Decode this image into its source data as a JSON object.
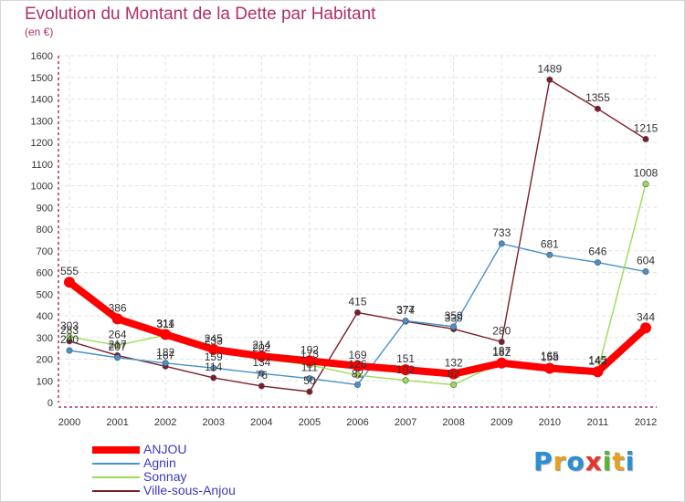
{
  "title": "Evolution du Montant de la Dette par Habitant",
  "subtitle": "(en €)",
  "logo": {
    "letters": [
      "P",
      "r",
      "o",
      "x",
      "i",
      "t",
      "i"
    ],
    "colors": [
      "#2a8fd6",
      "#e8a020",
      "#2a8fd6",
      "#e8342a",
      "#5ab531",
      "#e8a020",
      "#2a8fd6"
    ]
  },
  "chart_data": {
    "type": "line",
    "x": [
      "2000",
      "2001",
      "2002",
      "2003",
      "2004",
      "2005",
      "2006",
      "2007",
      "2008",
      "2009",
      "2010",
      "2011",
      "2012"
    ],
    "ylim": [
      0,
      1600
    ],
    "yticks": [
      0,
      100,
      200,
      300,
      400,
      500,
      600,
      700,
      800,
      900,
      1000,
      1100,
      1200,
      1300,
      1400,
      1500,
      1600
    ],
    "grid": true,
    "legend_position": "bottom-left",
    "series": [
      {
        "name": "Ville-sous-Anjou",
        "color": "#7a1f2a",
        "values": [
          283,
          217,
          167,
          114,
          76,
          50,
          415,
          374,
          339,
          280,
          1489,
          1355,
          1215
        ]
      },
      {
        "name": "Agnin",
        "color": "#4a90c8",
        "values": [
          240,
          207,
          182,
          159,
          134,
          111,
          82,
          377,
          350,
          733,
          681,
          646,
          604
        ]
      },
      {
        "name": "Sonnay",
        "color": "#99dd55",
        "values": [
          303,
          264,
          311,
          233,
          202,
          173,
          126,
          102,
          82,
          187,
          165,
          145,
          1008
        ]
      },
      {
        "name": "ANJOU",
        "color": "#ff0000",
        "values": [
          555,
          386,
          314,
          245,
          214,
          192,
          169,
          151,
          132,
          182,
          158,
          142,
          344
        ]
      }
    ]
  }
}
